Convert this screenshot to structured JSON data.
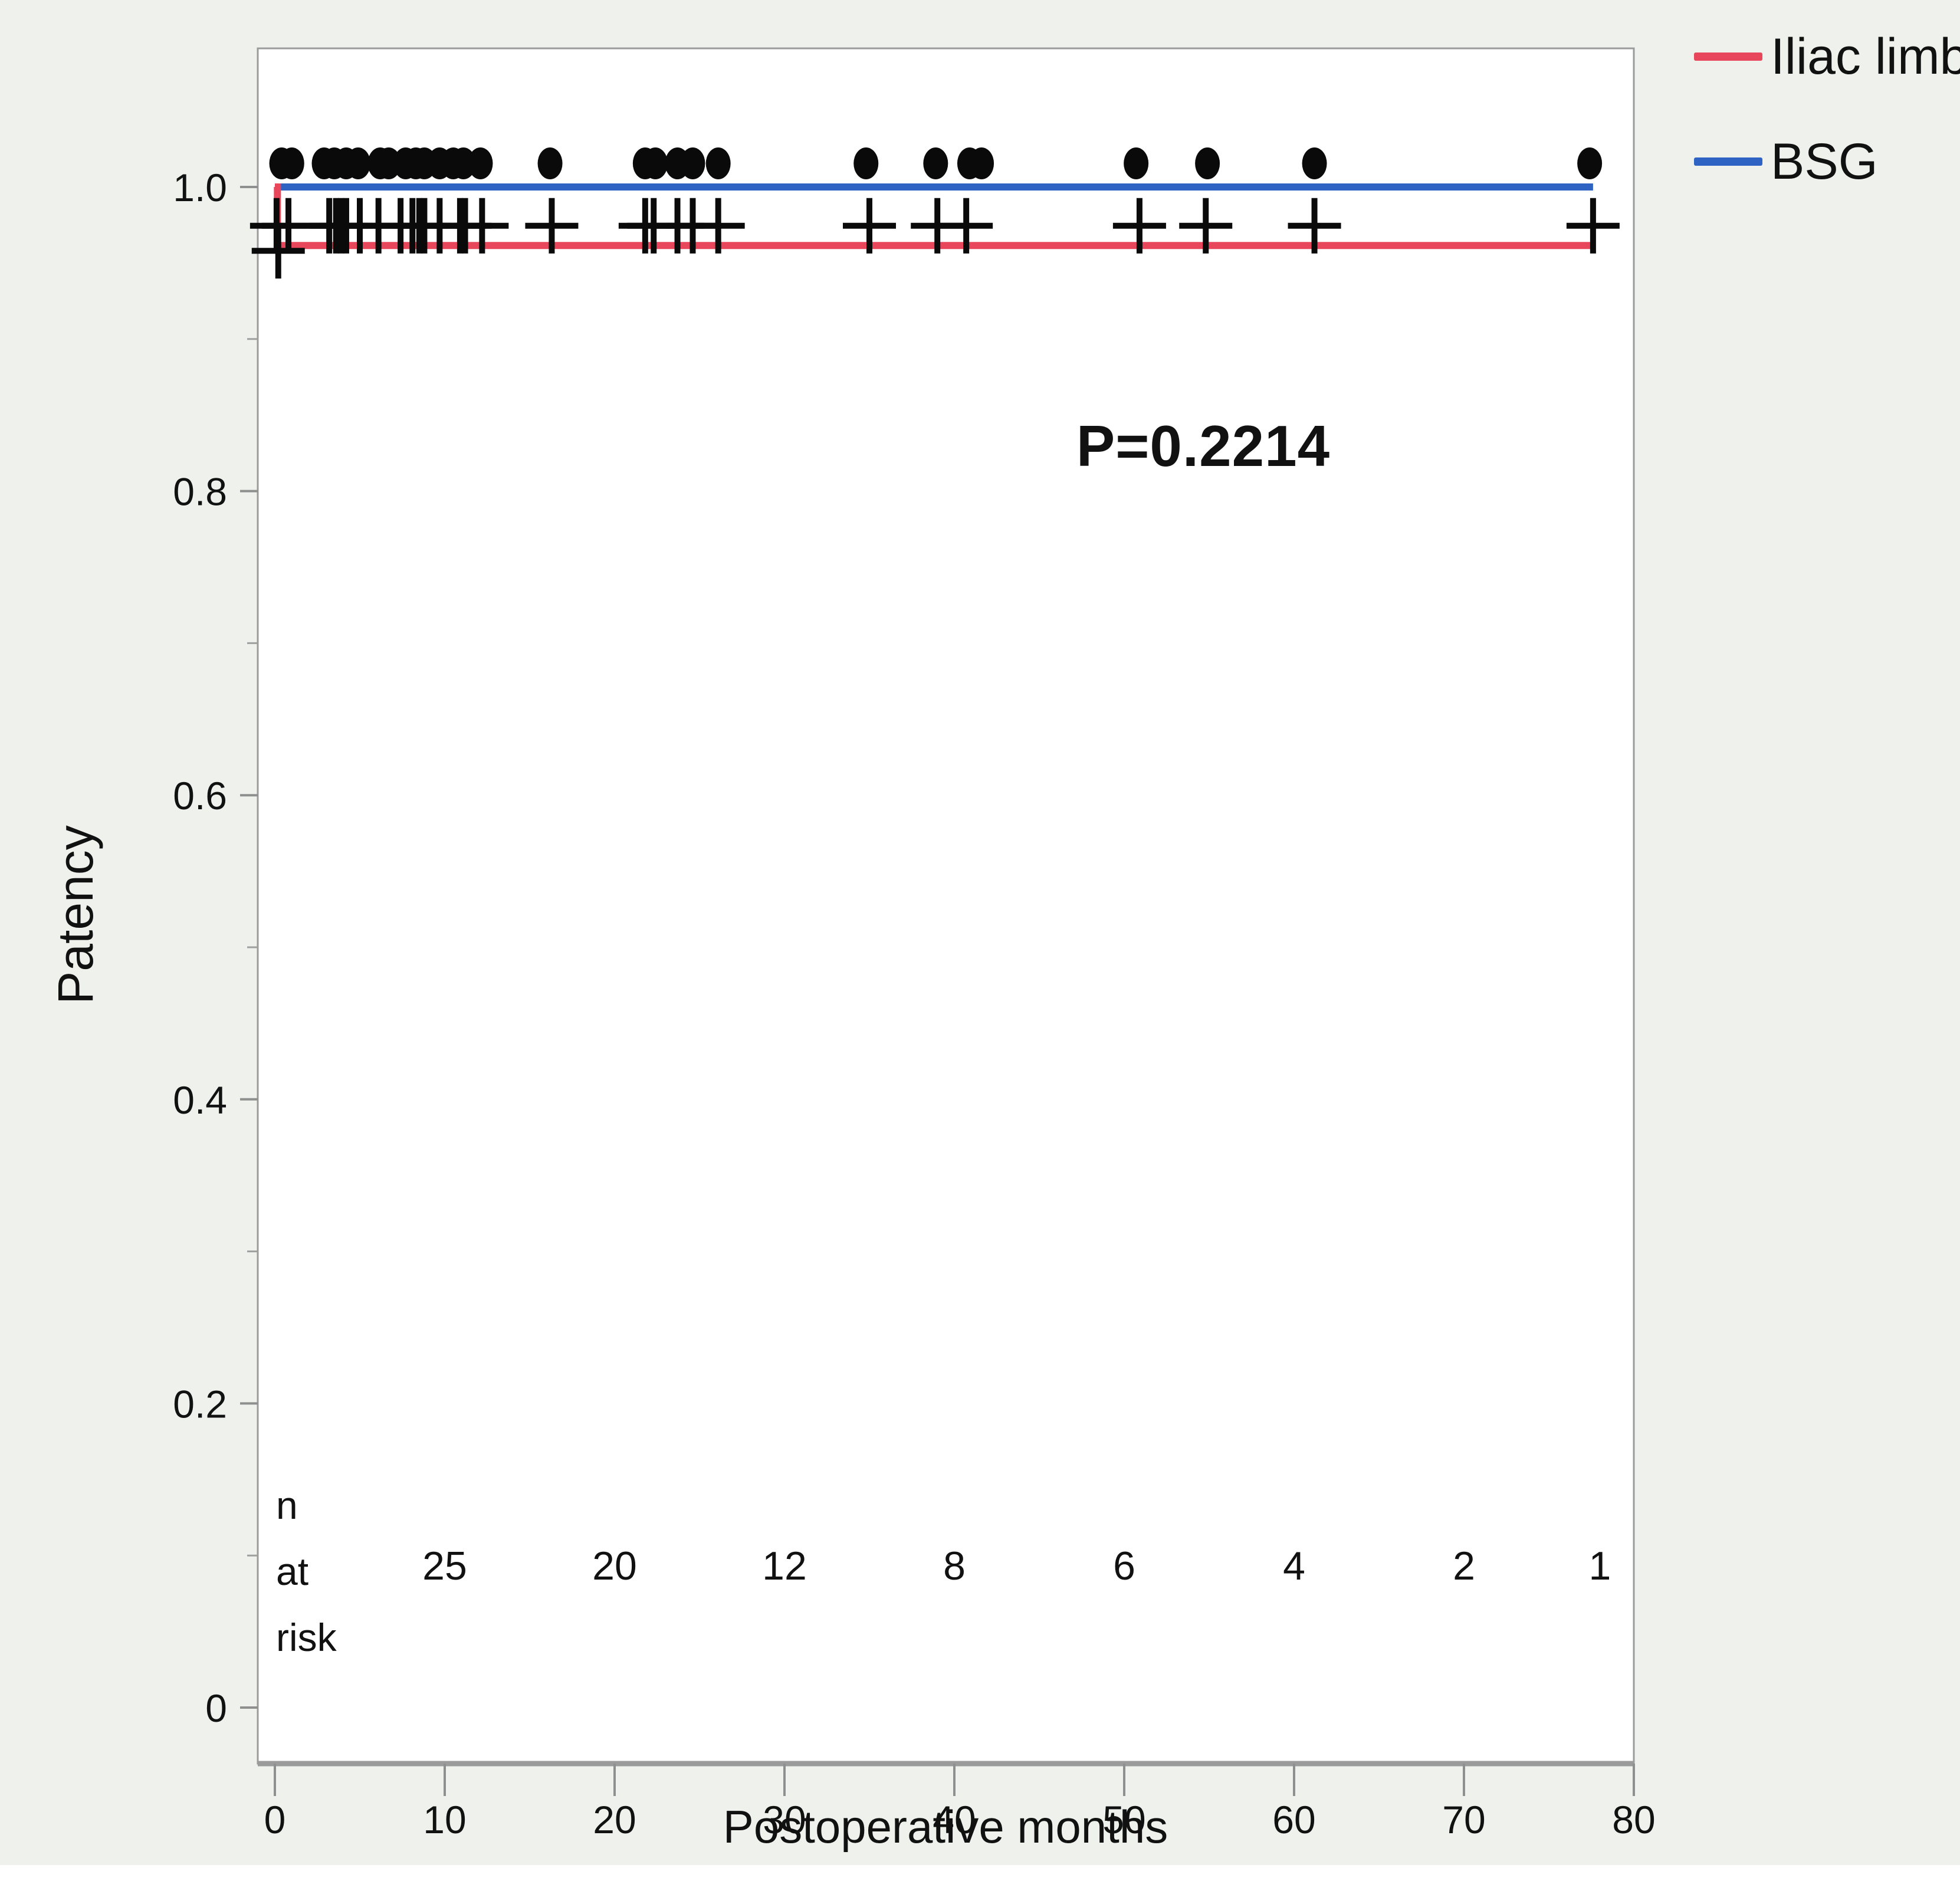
{
  "figure": {
    "background_color": "#eef1ec",
    "plot_background_color": "#ffffff",
    "frame_color": "#9b9b9b"
  },
  "chart_data": {
    "type": "line",
    "subtype": "kaplan-meier-step",
    "title": "",
    "xlabel": "Postoperative months",
    "ylabel": "Patency",
    "annotation": "P=0.2214",
    "xlim": [
      0,
      80
    ],
    "ylim": [
      0,
      1.09
    ],
    "grid": false,
    "legend_position": "top-right-outside",
    "x_ticks": [
      {
        "v": 0,
        "label": "0"
      },
      {
        "v": 10,
        "label": "10"
      },
      {
        "v": 20,
        "label": "20"
      },
      {
        "v": 30,
        "label": "30"
      },
      {
        "v": 40,
        "label": "40"
      },
      {
        "v": 50,
        "label": "50"
      },
      {
        "v": 60,
        "label": "60"
      },
      {
        "v": 70,
        "label": "70"
      },
      {
        "v": 80,
        "label": "80"
      }
    ],
    "y_ticks": [
      {
        "v": 1.0,
        "label": "1.0"
      },
      {
        "v": 0.8,
        "label": "0.8"
      },
      {
        "v": 0.6,
        "label": "0.6"
      },
      {
        "v": 0.4,
        "label": "0.4"
      },
      {
        "v": 0.2,
        "label": "0.2"
      },
      {
        "v": 0.0,
        "label": "0"
      }
    ],
    "y_minor_ticks": [
      0.9,
      0.7,
      0.5,
      0.3,
      0.1
    ],
    "legend": [
      {
        "name": "Iliac limb",
        "color": "#e8475b"
      },
      {
        "name": "BSG",
        "color": "#2e63c4"
      }
    ],
    "series": [
      {
        "name": "BSG",
        "color": "#2e63c4",
        "points": [
          [
            0,
            1.0
          ],
          [
            77.6,
            1.0
          ]
        ],
        "censor_marker": "dot",
        "censor_level": 1.0155,
        "censor_x": [
          0.4,
          1.0,
          2.9,
          3.5,
          4.2,
          4.9,
          6.2,
          6.7,
          7.7,
          8.3,
          8.8,
          9.7,
          10.5,
          11.1,
          12.1,
          16.2,
          21.8,
          22.4,
          23.7,
          24.6,
          26.1,
          34.8,
          38.9,
          40.9,
          41.6,
          50.7,
          54.9,
          61.2,
          77.4
        ]
      },
      {
        "name": "Iliac limb",
        "color": "#e8475b",
        "points": [
          [
            0,
            1.0
          ],
          [
            0.15,
            1.0
          ],
          [
            0.15,
            0.9615
          ],
          [
            77.6,
            0.9615
          ]
        ],
        "censor_marker": "plus",
        "censor_level": 0.9745,
        "censor_x": [
          0.1,
          0.8,
          3.2,
          3.6,
          3.9,
          4.2,
          5.0,
          6.1,
          7.4,
          8.1,
          8.5,
          8.8,
          9.7,
          10.9,
          11.2,
          12.2,
          16.3,
          21.8,
          22.3,
          23.7,
          24.6,
          26.1,
          35.0,
          39.0,
          40.7,
          50.9,
          54.8,
          61.2,
          77.6
        ],
        "extra_censors": [
          {
            "x": 0.2,
            "y": 0.958
          }
        ]
      }
    ],
    "risk_table": {
      "header_lines": [
        "n",
        "at",
        "risk"
      ],
      "entries": [
        {
          "x": 10,
          "label": "25"
        },
        {
          "x": 20,
          "label": "20"
        },
        {
          "x": 30,
          "label": "12"
        },
        {
          "x": 40,
          "label": "8"
        },
        {
          "x": 50,
          "label": "6"
        },
        {
          "x": 60,
          "label": "4"
        },
        {
          "x": 70,
          "label": "2"
        },
        {
          "x": 78,
          "label": "1"
        }
      ]
    }
  }
}
